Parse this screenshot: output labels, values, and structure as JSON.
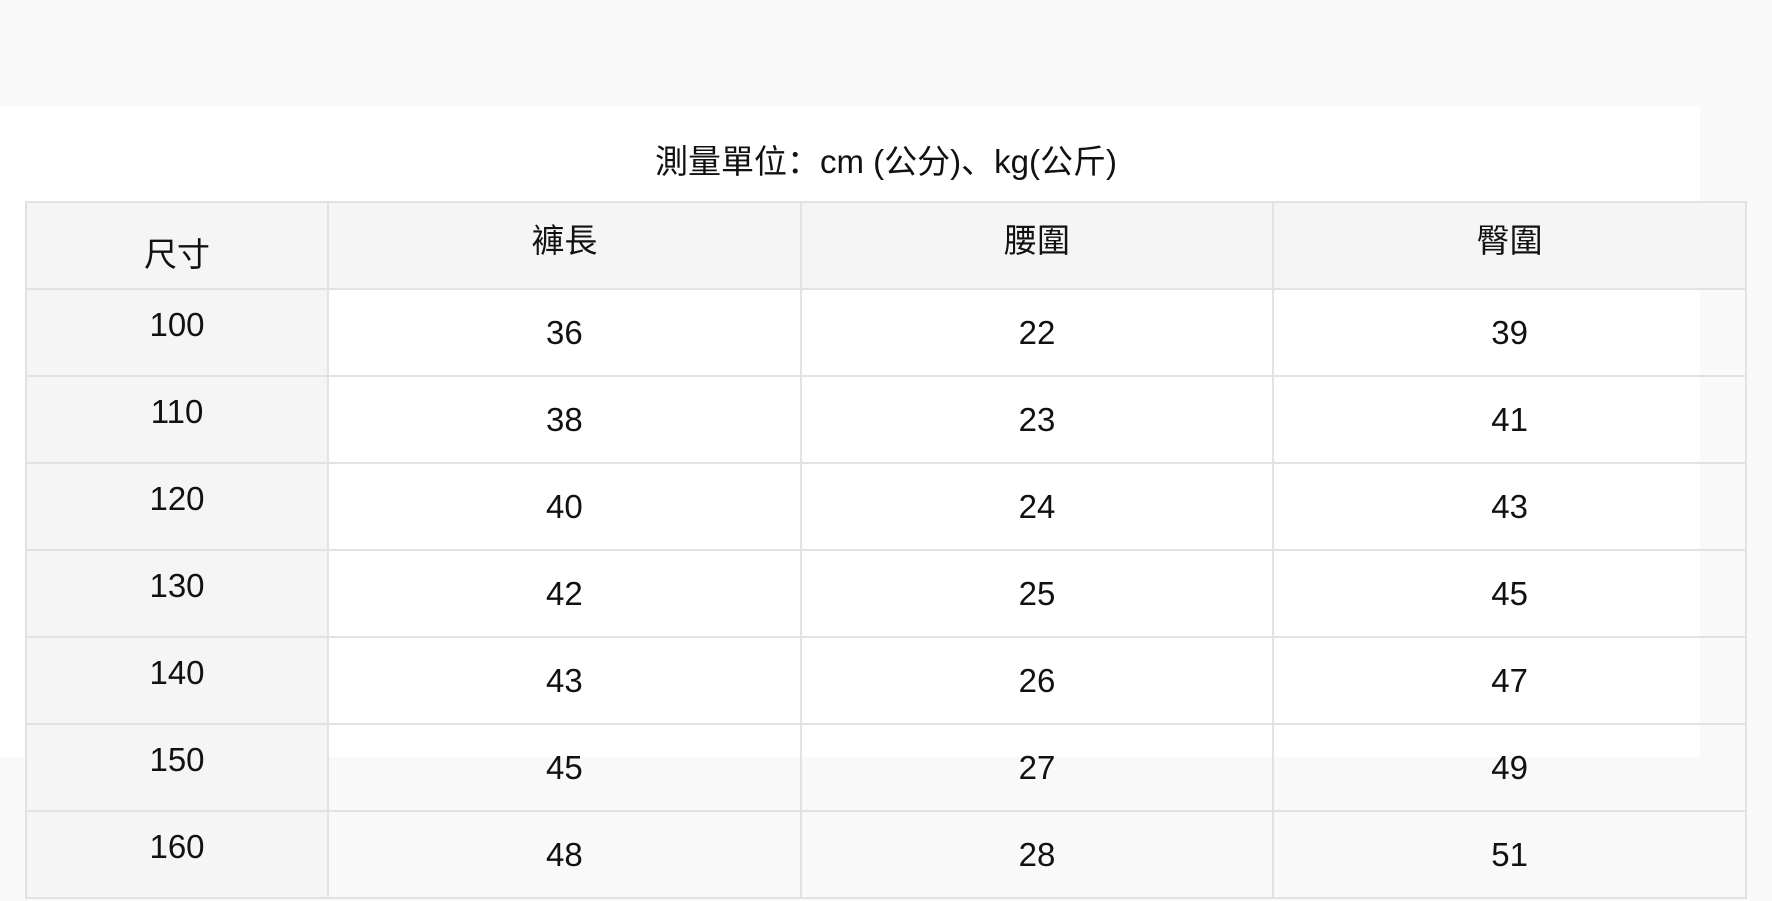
{
  "title": "測量單位：cm (公分)、kg(公斤)",
  "table": {
    "headers": [
      "尺寸",
      "褲長",
      "腰圍",
      "臀圍"
    ],
    "rows": [
      [
        "100",
        "36",
        "22",
        "39"
      ],
      [
        "110",
        "38",
        "23",
        "41"
      ],
      [
        "120",
        "40",
        "24",
        "43"
      ],
      [
        "130",
        "42",
        "25",
        "45"
      ],
      [
        "140",
        "43",
        "26",
        "47"
      ],
      [
        "150",
        "45",
        "27",
        "49"
      ],
      [
        "160",
        "48",
        "28",
        "51"
      ]
    ]
  }
}
